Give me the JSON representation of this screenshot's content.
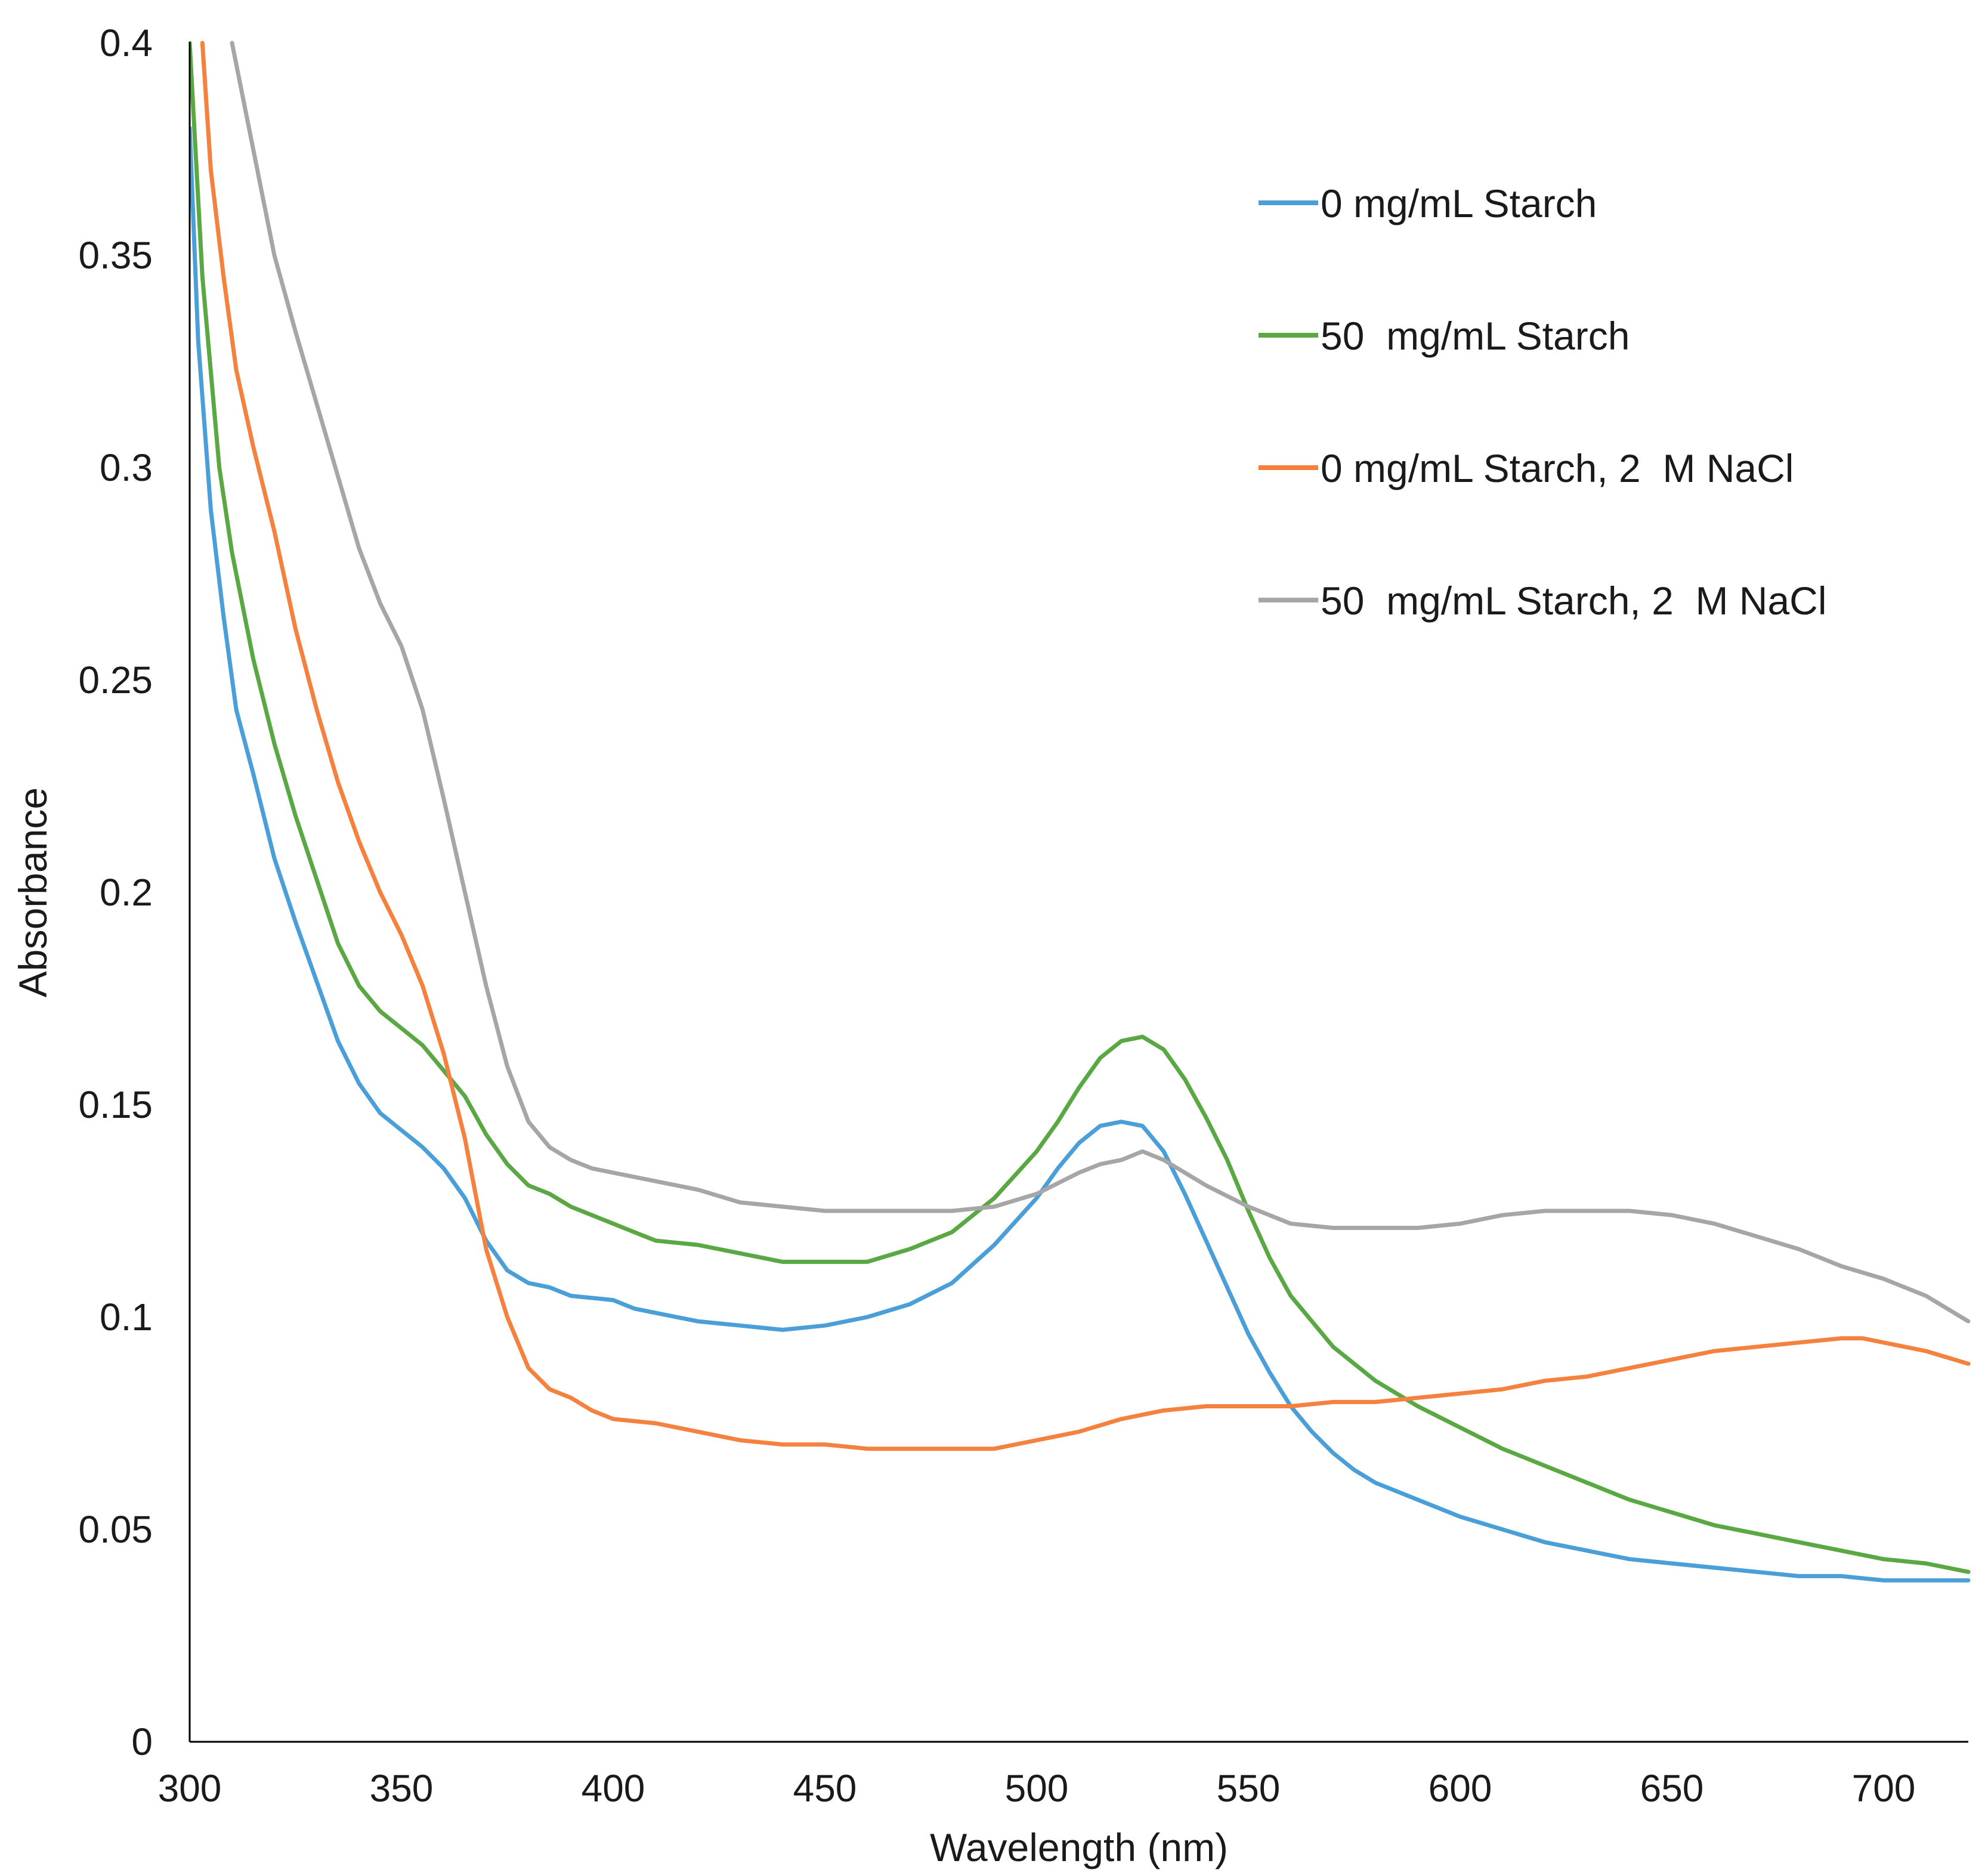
{
  "chart_data": {
    "type": "line",
    "title": "",
    "xlabel": "Wavelength (nm)",
    "ylabel": "Absorbance",
    "xlim": [
      300,
      720
    ],
    "ylim": [
      0,
      0.4
    ],
    "x_ticks": [
      300,
      350,
      400,
      450,
      500,
      550,
      600,
      650,
      700
    ],
    "x_tick_labels": [
      "300",
      "350",
      "400",
      "450",
      "500",
      "550",
      "600",
      "650",
      "700"
    ],
    "y_ticks": [
      0,
      0.05,
      0.1,
      0.15,
      0.2,
      0.25,
      0.3,
      0.35,
      0.4
    ],
    "y_tick_labels": [
      "0",
      "0.05",
      "0.1",
      "0.15",
      "0.2",
      "0.25",
      "0.3",
      "0.35",
      "0.4"
    ],
    "grid": false,
    "legend_position": "top-right",
    "series": [
      {
        "name": "0 mg/mL Starch",
        "color": "#4a9fd8",
        "points": [
          [
            300,
            0.38
          ],
          [
            302,
            0.33
          ],
          [
            305,
            0.29
          ],
          [
            308,
            0.265
          ],
          [
            311,
            0.243
          ],
          [
            315,
            0.228
          ],
          [
            320,
            0.208
          ],
          [
            325,
            0.193
          ],
          [
            330,
            0.179
          ],
          [
            335,
            0.165
          ],
          [
            340,
            0.155
          ],
          [
            345,
            0.148
          ],
          [
            350,
            0.144
          ],
          [
            355,
            0.14
          ],
          [
            360,
            0.135
          ],
          [
            365,
            0.128
          ],
          [
            370,
            0.118
          ],
          [
            375,
            0.111
          ],
          [
            380,
            0.108
          ],
          [
            385,
            0.107
          ],
          [
            390,
            0.105
          ],
          [
            400,
            0.104
          ],
          [
            405,
            0.102
          ],
          [
            410,
            0.101
          ],
          [
            420,
            0.099
          ],
          [
            430,
            0.098
          ],
          [
            440,
            0.097
          ],
          [
            450,
            0.098
          ],
          [
            460,
            0.1
          ],
          [
            470,
            0.103
          ],
          [
            480,
            0.108
          ],
          [
            490,
            0.117
          ],
          [
            500,
            0.128
          ],
          [
            505,
            0.135
          ],
          [
            510,
            0.141
          ],
          [
            515,
            0.145
          ],
          [
            520,
            0.146
          ],
          [
            525,
            0.145
          ],
          [
            530,
            0.139
          ],
          [
            535,
            0.129
          ],
          [
            540,
            0.118
          ],
          [
            545,
            0.107
          ],
          [
            550,
            0.096
          ],
          [
            555,
            0.087
          ],
          [
            560,
            0.079
          ],
          [
            565,
            0.073
          ],
          [
            570,
            0.068
          ],
          [
            575,
            0.064
          ],
          [
            580,
            0.061
          ],
          [
            590,
            0.057
          ],
          [
            600,
            0.053
          ],
          [
            610,
            0.05
          ],
          [
            620,
            0.047
          ],
          [
            630,
            0.045
          ],
          [
            640,
            0.043
          ],
          [
            650,
            0.042
          ],
          [
            660,
            0.041
          ],
          [
            670,
            0.04
          ],
          [
            680,
            0.039
          ],
          [
            690,
            0.039
          ],
          [
            700,
            0.038
          ],
          [
            710,
            0.038
          ],
          [
            720,
            0.038
          ]
        ]
      },
      {
        "name": "50  mg/mL Starch",
        "color": "#5aa844",
        "points": [
          [
            300,
            0.4
          ],
          [
            303,
            0.345
          ],
          [
            307,
            0.3
          ],
          [
            310,
            0.28
          ],
          [
            315,
            0.255
          ],
          [
            320,
            0.235
          ],
          [
            325,
            0.218
          ],
          [
            330,
            0.203
          ],
          [
            335,
            0.188
          ],
          [
            340,
            0.178
          ],
          [
            345,
            0.172
          ],
          [
            350,
            0.168
          ],
          [
            355,
            0.164
          ],
          [
            360,
            0.158
          ],
          [
            365,
            0.152
          ],
          [
            370,
            0.143
          ],
          [
            375,
            0.136
          ],
          [
            380,
            0.131
          ],
          [
            385,
            0.129
          ],
          [
            390,
            0.126
          ],
          [
            400,
            0.122
          ],
          [
            405,
            0.12
          ],
          [
            410,
            0.118
          ],
          [
            420,
            0.117
          ],
          [
            430,
            0.115
          ],
          [
            440,
            0.113
          ],
          [
            450,
            0.113
          ],
          [
            460,
            0.113
          ],
          [
            470,
            0.116
          ],
          [
            480,
            0.12
          ],
          [
            490,
            0.128
          ],
          [
            500,
            0.139
          ],
          [
            505,
            0.146
          ],
          [
            510,
            0.154
          ],
          [
            515,
            0.161
          ],
          [
            520,
            0.165
          ],
          [
            525,
            0.166
          ],
          [
            530,
            0.163
          ],
          [
            535,
            0.156
          ],
          [
            540,
            0.147
          ],
          [
            545,
            0.137
          ],
          [
            550,
            0.125
          ],
          [
            555,
            0.114
          ],
          [
            560,
            0.105
          ],
          [
            570,
            0.093
          ],
          [
            580,
            0.085
          ],
          [
            590,
            0.079
          ],
          [
            600,
            0.074
          ],
          [
            610,
            0.069
          ],
          [
            620,
            0.065
          ],
          [
            630,
            0.061
          ],
          [
            640,
            0.057
          ],
          [
            650,
            0.054
          ],
          [
            660,
            0.051
          ],
          [
            670,
            0.049
          ],
          [
            680,
            0.047
          ],
          [
            690,
            0.045
          ],
          [
            700,
            0.043
          ],
          [
            710,
            0.042
          ],
          [
            720,
            0.04
          ]
        ]
      },
      {
        "name": "0 mg/mL Starch, 2  M NaCl",
        "color": "#f5813f",
        "points": [
          [
            303,
            0.4
          ],
          [
            305,
            0.37
          ],
          [
            308,
            0.345
          ],
          [
            311,
            0.323
          ],
          [
            315,
            0.305
          ],
          [
            320,
            0.285
          ],
          [
            325,
            0.262
          ],
          [
            330,
            0.243
          ],
          [
            335,
            0.226
          ],
          [
            340,
            0.212
          ],
          [
            345,
            0.2
          ],
          [
            350,
            0.19
          ],
          [
            355,
            0.178
          ],
          [
            360,
            0.162
          ],
          [
            365,
            0.142
          ],
          [
            370,
            0.116
          ],
          [
            375,
            0.1
          ],
          [
            380,
            0.088
          ],
          [
            385,
            0.083
          ],
          [
            390,
            0.081
          ],
          [
            395,
            0.078
          ],
          [
            400,
            0.076
          ],
          [
            410,
            0.075
          ],
          [
            420,
            0.073
          ],
          [
            430,
            0.071
          ],
          [
            440,
            0.07
          ],
          [
            450,
            0.07
          ],
          [
            460,
            0.069
          ],
          [
            470,
            0.069
          ],
          [
            480,
            0.069
          ],
          [
            490,
            0.069
          ],
          [
            500,
            0.071
          ],
          [
            510,
            0.073
          ],
          [
            520,
            0.076
          ],
          [
            530,
            0.078
          ],
          [
            540,
            0.079
          ],
          [
            550,
            0.079
          ],
          [
            560,
            0.079
          ],
          [
            570,
            0.08
          ],
          [
            580,
            0.08
          ],
          [
            590,
            0.081
          ],
          [
            600,
            0.082
          ],
          [
            610,
            0.083
          ],
          [
            620,
            0.085
          ],
          [
            630,
            0.086
          ],
          [
            640,
            0.088
          ],
          [
            650,
            0.09
          ],
          [
            660,
            0.092
          ],
          [
            670,
            0.093
          ],
          [
            680,
            0.094
          ],
          [
            690,
            0.095
          ],
          [
            695,
            0.095
          ],
          [
            700,
            0.094
          ],
          [
            710,
            0.092
          ],
          [
            720,
            0.089
          ]
        ]
      },
      {
        "name": "50  mg/mL Starch, 2  M NaCl",
        "color": "#a6a6a6",
        "points": [
          [
            310,
            0.4
          ],
          [
            313,
            0.385
          ],
          [
            317,
            0.365
          ],
          [
            320,
            0.35
          ],
          [
            325,
            0.332
          ],
          [
            330,
            0.315
          ],
          [
            335,
            0.298
          ],
          [
            340,
            0.281
          ],
          [
            345,
            0.268
          ],
          [
            350,
            0.258
          ],
          [
            355,
            0.243
          ],
          [
            360,
            0.222
          ],
          [
            365,
            0.2
          ],
          [
            370,
            0.178
          ],
          [
            375,
            0.159
          ],
          [
            380,
            0.146
          ],
          [
            385,
            0.14
          ],
          [
            390,
            0.137
          ],
          [
            395,
            0.135
          ],
          [
            400,
            0.134
          ],
          [
            410,
            0.132
          ],
          [
            420,
            0.13
          ],
          [
            430,
            0.127
          ],
          [
            440,
            0.126
          ],
          [
            450,
            0.125
          ],
          [
            460,
            0.125
          ],
          [
            470,
            0.125
          ],
          [
            480,
            0.125
          ],
          [
            490,
            0.126
          ],
          [
            500,
            0.129
          ],
          [
            510,
            0.134
          ],
          [
            515,
            0.136
          ],
          [
            520,
            0.137
          ],
          [
            525,
            0.139
          ],
          [
            530,
            0.137
          ],
          [
            540,
            0.131
          ],
          [
            550,
            0.126
          ],
          [
            560,
            0.122
          ],
          [
            570,
            0.121
          ],
          [
            580,
            0.121
          ],
          [
            590,
            0.121
          ],
          [
            600,
            0.122
          ],
          [
            610,
            0.124
          ],
          [
            620,
            0.125
          ],
          [
            630,
            0.125
          ],
          [
            640,
            0.125
          ],
          [
            650,
            0.124
          ],
          [
            660,
            0.122
          ],
          [
            670,
            0.119
          ],
          [
            680,
            0.116
          ],
          [
            690,
            0.112
          ],
          [
            700,
            0.109
          ],
          [
            710,
            0.105
          ],
          [
            720,
            0.099
          ]
        ]
      }
    ]
  }
}
